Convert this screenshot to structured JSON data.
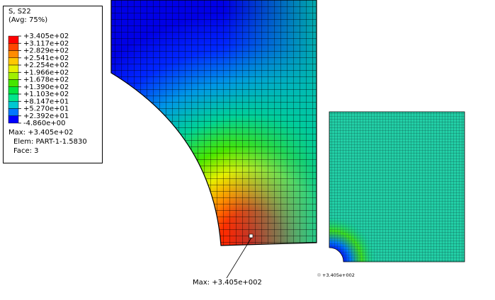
{
  "legend": {
    "title": "S, S22",
    "subtitle": "(Avg: 75%)",
    "labels": [
      "+3.405e+02",
      "+3.117e+02",
      "+2.829e+02",
      "+2.541e+02",
      "+2.254e+02",
      "+1.966e+02",
      "+1.678e+02",
      "+1.390e+02",
      "+1.103e+02",
      "+8.147e+01",
      "+5.270e+01",
      "+2.392e+01",
      "-4.860e+00"
    ],
    "colors": [
      "#ff0000",
      "#ff4600",
      "#ff8c00",
      "#ffc800",
      "#e6f000",
      "#a0f000",
      "#46e600",
      "#00e640",
      "#00e68c",
      "#00c8d2",
      "#0078ff",
      "#0000ff"
    ]
  },
  "info": [
    "Max: +3.405e+02",
    "Elem: PART-1-1.5830",
    "Face: 3"
  ],
  "annotations": {
    "max_label": "Max: +3.405e+002",
    "max_small": "+3.405e+002"
  }
}
